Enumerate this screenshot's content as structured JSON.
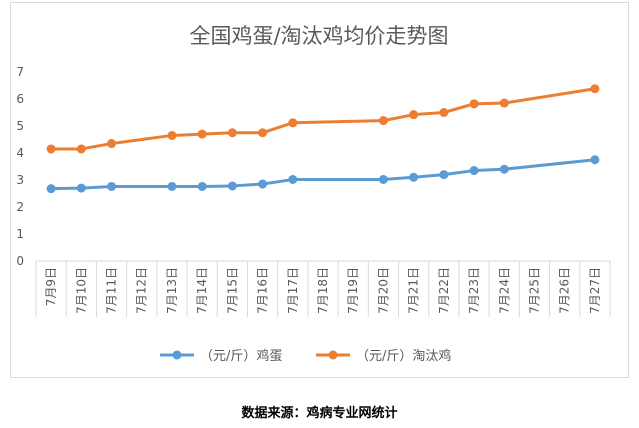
{
  "source_note": "数据来源：鸡病专业网统计",
  "chart_data": {
    "type": "line",
    "title": "全国鸡蛋/淘汰鸡均价走势图",
    "xlabel": "",
    "ylabel": "",
    "ylim": [
      0,
      7
    ],
    "yticks": [
      0,
      1,
      2,
      3,
      4,
      5,
      6,
      7
    ],
    "grid": false,
    "legend": "bottom",
    "categories": [
      "7月9日",
      "7月10日",
      "7月11日",
      "7月12日",
      "7月13日",
      "7月14日",
      "7月15日",
      "7月16日",
      "7月17日",
      "7月18日",
      "7月19日",
      "7月20日",
      "7月21日",
      "7月22日",
      "7月23日",
      "7月24日",
      "7月25日",
      "7月26日",
      "7月27日"
    ],
    "series": [
      {
        "name": "（元/斤）鸡蛋",
        "color": "#5b9bd5",
        "values": [
          2.68,
          2.7,
          2.76,
          null,
          2.76,
          2.76,
          2.78,
          2.85,
          3.02,
          null,
          null,
          3.02,
          3.1,
          3.2,
          3.35,
          3.4,
          null,
          null,
          3.75
        ]
      },
      {
        "name": "（元/斤）淘汰鸡",
        "color": "#ed7d31",
        "values": [
          4.15,
          4.15,
          4.35,
          null,
          4.65,
          4.7,
          4.75,
          4.75,
          5.12,
          null,
          null,
          5.2,
          5.42,
          5.5,
          5.82,
          5.85,
          null,
          null,
          6.38
        ]
      }
    ]
  }
}
